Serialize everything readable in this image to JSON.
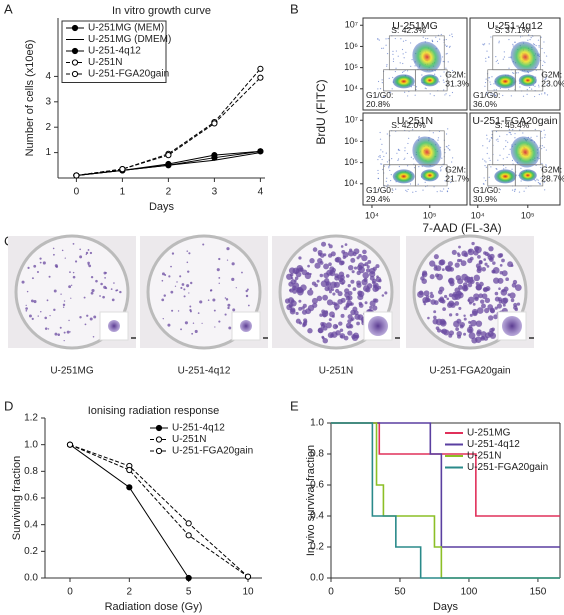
{
  "panel_labels": [
    "A",
    "B",
    "C",
    "D",
    "E"
  ],
  "plates": {
    "captions": [
      "U-251MG",
      "U-251-4q12",
      "U-251N",
      "U-251-FGA20gain"
    ]
  },
  "chart_data": [
    {
      "type": "line",
      "title": "In vitro growth curve",
      "x_label": "Days",
      "y_label": "Number of cells (x10e6)",
      "x": [
        0,
        1,
        2,
        3,
        4
      ],
      "xlim": [
        -0.4,
        4.1
      ],
      "xticks": [
        0,
        1,
        2,
        3,
        4
      ],
      "ylim": [
        0,
        6.3
      ],
      "yticks": [
        1,
        2,
        3,
        4
      ],
      "legend": "upper left",
      "series": [
        {
          "name": "U-251MG (MEM)",
          "color": "#000000",
          "dash": false,
          "marker": "filled",
          "values": [
            0.1,
            0.3,
            0.5,
            0.8,
            1.05
          ]
        },
        {
          "name": "U-251MG (DMEM)",
          "color": "#000000",
          "dash": false,
          "marker": "none",
          "values": [
            0.1,
            0.3,
            0.5,
            0.7,
            1.0
          ]
        },
        {
          "name": "U-251-4q12",
          "color": "#000000",
          "dash": false,
          "marker": "filled",
          "values": [
            0.1,
            0.3,
            0.55,
            0.9,
            1.05
          ]
        },
        {
          "name": "U-251N",
          "color": "#000000",
          "dash": true,
          "marker": "open",
          "values": [
            0.1,
            0.35,
            0.95,
            2.2,
            4.3
          ]
        },
        {
          "name": "U-251-FGA20gain",
          "color": "#000000",
          "dash": true,
          "marker": "open",
          "values": [
            0.1,
            0.35,
            0.9,
            2.15,
            3.95
          ]
        }
      ]
    },
    {
      "type": "flow",
      "y_label": "BrdU (FITC)",
      "x_label": "7-AAD (FL-3A)",
      "log_scale": true,
      "xlim": [
        7000,
        440000
      ],
      "xticks": [
        {
          "value": 10000,
          "label": "10⁴"
        },
        {
          "value": 100000,
          "label": "10⁵"
        }
      ],
      "ylim": [
        1000,
        22000000
      ],
      "yticks": [
        {
          "value": 10000,
          "label": "10⁴"
        },
        {
          "value": 100000,
          "label": "10⁵"
        },
        {
          "value": 1000000,
          "label": "10⁶"
        },
        {
          "value": 10000000,
          "label": "10⁷"
        }
      ],
      "plots": [
        {
          "name": "U-251MG",
          "values": [
            42.3,
            31.3,
            20.8
          ],
          "value_labels": [
            "S: 42.3%",
            "G2M:\n31.3%",
            "G1/G0:\n20.8%"
          ]
        },
        {
          "name": "U-251-4q12",
          "values": [
            37.1,
            23.0,
            36.0
          ],
          "value_labels": [
            "S: 37.1%",
            "G2M:\n23.0%",
            "G1/G0:\n36.0%"
          ]
        },
        {
          "name": "U-251N",
          "values": [
            42.0,
            21.7,
            29.4
          ],
          "value_labels": [
            "S: 42.0%",
            "G2M:\n21.7%",
            "G1/G0:\n29.4%"
          ]
        },
        {
          "name": "U-251-FGA20gain",
          "values": [
            45.4,
            28.7,
            30.9
          ],
          "value_labels": [
            "S: 45.4%",
            "G2M:\n28.7%",
            "G1/G0:\n30.9%"
          ]
        }
      ]
    },
    {
      "type": "line",
      "title": "Ionising radiation response",
      "x_label": "Radiation dose (Gy)",
      "y_label": "Surviving fraction",
      "categories": [
        "0",
        "2",
        "5",
        "10"
      ],
      "ylim": [
        0,
        1.2
      ],
      "yticks": [
        {
          "value": 0,
          "label": "0.0"
        },
        0.2,
        0.4,
        0.6,
        0.8,
        {
          "value": 1,
          "label": "1.0"
        },
        1.2
      ],
      "legend": "upper right",
      "series": [
        {
          "name": "U-251-4q12",
          "color": "#000000",
          "dash": false,
          "marker": "filled",
          "values": [
            1.0,
            0.68,
            0.0,
            null
          ]
        },
        {
          "name": "U-251N",
          "color": "#000000",
          "dash": true,
          "marker": "open",
          "values": [
            1.0,
            0.84,
            0.41,
            0.01
          ]
        },
        {
          "name": "U-251-FGA20gain",
          "color": "#000000",
          "dash": true,
          "marker": "open",
          "values": [
            1.0,
            0.81,
            0.32,
            0.01
          ]
        }
      ]
    },
    {
      "type": "step",
      "x_label": "Days",
      "y_label": "In vivo survival fraction",
      "xlim": [
        0,
        166
      ],
      "xticks": [
        0,
        50,
        100,
        150
      ],
      "ylim": [
        0,
        1
      ],
      "yticks": [
        {
          "value": 0,
          "label": "0.0"
        },
        0.2,
        0.4,
        0.6,
        0.8,
        {
          "value": 1,
          "label": "1.0"
        }
      ],
      "legend": "upper right",
      "series": [
        {
          "name": "U-251MG",
          "color": "#e0305a",
          "x": [
            0,
            35,
            105,
            166
          ],
          "values": [
            1.0,
            0.8,
            0.4,
            0.4
          ]
        },
        {
          "name": "U-251-4q12",
          "color": "#5a3fa0",
          "x": [
            0,
            72,
            80,
            166
          ],
          "values": [
            1.0,
            0.8,
            0.2,
            0.2
          ]
        },
        {
          "name": "U-251N",
          "color": "#8cbf26",
          "x": [
            0,
            33,
            38,
            75,
            80
          ],
          "values": [
            1.0,
            0.6,
            0.4,
            0.2,
            0.0
          ]
        },
        {
          "name": "U-251-FGA20gain",
          "color": "#2a8a8a",
          "x": [
            0,
            30,
            47,
            65
          ],
          "values": [
            1.0,
            0.4,
            0.2,
            0.0
          ]
        }
      ]
    }
  ]
}
